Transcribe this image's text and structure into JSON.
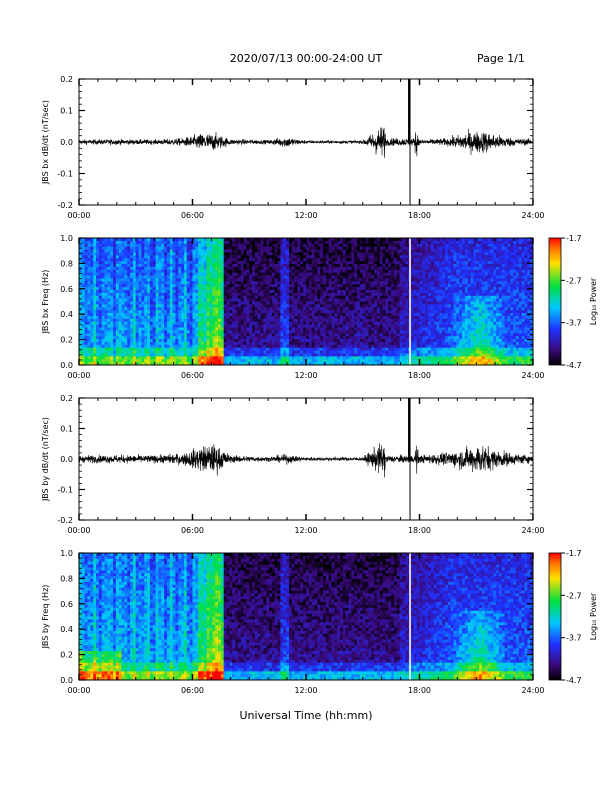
{
  "header": {
    "title": "2020/07/13  00:00-24:00 UT",
    "page": "Page 1/1"
  },
  "footer": {
    "xlabel": "Universal Time (hh:mm)"
  },
  "colorbar": {
    "label": "Log₁₀ Power",
    "ticks": [
      -1.7,
      -2.7,
      -3.7,
      -4.7
    ],
    "tick_labels": [
      "-1.7",
      "-2.7",
      "-3.7",
      "-4.7"
    ],
    "range": [
      -4.7,
      -1.7
    ]
  },
  "chart_data": [
    {
      "type": "line",
      "ylabel": "JBS bx dB/dt (nT/sec)",
      "xlim": [
        0,
        24
      ],
      "ylim": [
        -0.2,
        0.2
      ],
      "xticks": [
        "00:00",
        "06:00",
        "12:00",
        "18:00",
        "24:00"
      ],
      "yticks": [
        "0.2",
        "0.1",
        "0.0",
        "-0.1",
        "-0.2"
      ],
      "series": [
        {
          "x_hours": [
            0,
            2,
            4,
            5.5,
            6.5,
            7.2,
            8,
            10,
            11,
            11.5,
            12,
            15,
            17.5,
            18,
            19.5,
            20.5,
            21.3,
            22,
            23,
            24
          ],
          "envelope": [
            0.012,
            0.014,
            0.012,
            0.02,
            0.045,
            0.045,
            0.015,
            0.01,
            0.03,
            0.015,
            0.008,
            0.008,
            0.2,
            0.012,
            0.02,
            0.05,
            0.06,
            0.04,
            0.02,
            0.015
          ]
        }
      ]
    },
    {
      "type": "heatmap",
      "ylabel": "JBS bx Freq (Hz)",
      "xlim": [
        0,
        24
      ],
      "ylim": [
        0,
        1.0
      ],
      "xticks": [
        "00:00",
        "06:00",
        "12:00",
        "18:00",
        "24:00"
      ],
      "yticks": [
        "1.0",
        "0.8",
        "0.6",
        "0.4",
        "0.2",
        "0.0"
      ],
      "component": "bx"
    },
    {
      "type": "line",
      "ylabel": "JBS by dB/dt (nT/sec)",
      "xlim": [
        0,
        24
      ],
      "ylim": [
        -0.2,
        0.2
      ],
      "xticks": [
        "00:00",
        "06:00",
        "12:00",
        "18:00",
        "24:00"
      ],
      "yticks": [
        "0.2",
        "0.1",
        "0.0",
        "-0.1",
        "-0.2"
      ],
      "series": [
        {
          "x_hours": [
            0,
            2,
            4,
            5.5,
            6.5,
            7.2,
            8,
            10,
            11,
            11.5,
            12,
            15,
            17.5,
            18,
            19.5,
            20.5,
            21.3,
            22,
            23,
            24
          ],
          "envelope": [
            0.02,
            0.022,
            0.02,
            0.03,
            0.07,
            0.08,
            0.02,
            0.012,
            0.025,
            0.015,
            0.01,
            0.01,
            0.2,
            0.02,
            0.035,
            0.06,
            0.08,
            0.05,
            0.03,
            0.02
          ]
        }
      ]
    },
    {
      "type": "heatmap",
      "ylabel": "JBS by Freq (Hz)",
      "xlim": [
        0,
        24
      ],
      "ylim": [
        0,
        1.0
      ],
      "xticks": [
        "00:00",
        "06:00",
        "12:00",
        "18:00",
        "24:00"
      ],
      "yticks": [
        "1.0",
        "0.8",
        "0.6",
        "0.4",
        "0.2",
        "0.0"
      ],
      "component": "by"
    }
  ]
}
